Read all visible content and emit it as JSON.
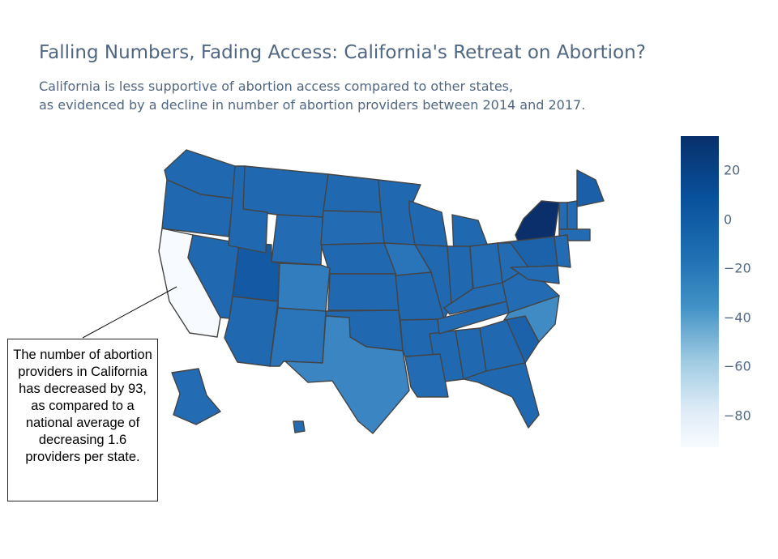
{
  "header": {
    "title": "Falling Numbers, Fading Access: California's Retreat on Abortion?",
    "subtitle_line1": "California is less supportive of abortion access compared to other states,",
    "subtitle_line2": "as evidenced by a decline in number of abortion providers between 2014 and 2017."
  },
  "annotation": {
    "text": "The number of abortion providers in California has decreased by 93, as compared to a national average of decreasing 1.6 providers per state."
  },
  "colorbar": {
    "ticks": [
      "20",
      "0",
      "−20",
      "−40",
      "−60",
      "−80"
    ],
    "tick_values": [
      20,
      0,
      -20,
      -40,
      -60,
      -80
    ],
    "range": [
      -93,
      34
    ],
    "colors": [
      "#f7fbff",
      "#deebf7",
      "#9ecae1",
      "#4292c6",
      "#2171b5",
      "#08519c",
      "#08306b"
    ]
  },
  "chart_data": {
    "type": "choropleth",
    "scope": "usa",
    "states": [
      {
        "code": "CA",
        "value": -93,
        "color": "#f7fbff"
      },
      {
        "code": "NY",
        "value": 34,
        "color": "#0b2f6b"
      },
      {
        "code": "UT",
        "value": 6,
        "color": "#1459a3"
      },
      {
        "code": "ME",
        "value": 5,
        "color": "#1a5fa8"
      },
      {
        "code": "PA",
        "value": 4,
        "color": "#1c62aa"
      },
      {
        "code": "SC",
        "value": 4,
        "color": "#1c62aa"
      },
      {
        "code": "MT",
        "value": 0,
        "color": "#2068b0"
      },
      {
        "code": "WA",
        "value": 0,
        "color": "#2068b0"
      },
      {
        "code": "OR",
        "value": 0,
        "color": "#2068b0"
      },
      {
        "code": "ND",
        "value": 0,
        "color": "#2068b0"
      },
      {
        "code": "MN",
        "value": 0,
        "color": "#2068b0"
      },
      {
        "code": "WI",
        "value": 0,
        "color": "#2068b0"
      },
      {
        "code": "MI",
        "value": 0,
        "color": "#2068b0"
      },
      {
        "code": "NE",
        "value": 0,
        "color": "#2068b0"
      },
      {
        "code": "KS",
        "value": 0,
        "color": "#2068b0"
      },
      {
        "code": "MO",
        "value": 0,
        "color": "#2068b0"
      },
      {
        "code": "IL",
        "value": 0,
        "color": "#2068b0"
      },
      {
        "code": "IN",
        "value": 0,
        "color": "#2068b0"
      },
      {
        "code": "OK",
        "value": 0,
        "color": "#2068b0"
      },
      {
        "code": "AR",
        "value": 0,
        "color": "#2068b0"
      },
      {
        "code": "MS",
        "value": 0,
        "color": "#2068b0"
      },
      {
        "code": "AL",
        "value": 0,
        "color": "#2068b0"
      },
      {
        "code": "GA",
        "value": 0,
        "color": "#2068b0"
      },
      {
        "code": "FL",
        "value": 0,
        "color": "#2068b0"
      },
      {
        "code": "AZ",
        "value": 0,
        "color": "#2068b0"
      },
      {
        "code": "NV",
        "value": 0,
        "color": "#2068b0"
      },
      {
        "code": "ID",
        "value": 0,
        "color": "#2068b0"
      },
      {
        "code": "WY",
        "value": -2,
        "color": "#236bb2"
      },
      {
        "code": "SD",
        "value": -2,
        "color": "#236bb2"
      },
      {
        "code": "LA",
        "value": -2,
        "color": "#236bb2"
      },
      {
        "code": "TN",
        "value": -2,
        "color": "#236bb2"
      },
      {
        "code": "KY",
        "value": -2,
        "color": "#236bb2"
      },
      {
        "code": "OH",
        "value": -2,
        "color": "#236bb2"
      },
      {
        "code": "WV",
        "value": -2,
        "color": "#236bb2"
      },
      {
        "code": "VA",
        "value": -2,
        "color": "#236bb2"
      },
      {
        "code": "AK",
        "value": -2,
        "color": "#236bb2"
      },
      {
        "code": "HI",
        "value": -2,
        "color": "#236bb2"
      },
      {
        "code": "VT",
        "value": -2,
        "color": "#236bb2"
      },
      {
        "code": "NH",
        "value": -2,
        "color": "#236bb2"
      },
      {
        "code": "MA",
        "value": -2,
        "color": "#236bb2"
      },
      {
        "code": "NJ",
        "value": -2,
        "color": "#236bb2"
      },
      {
        "code": "MD",
        "value": -2,
        "color": "#236bb2"
      },
      {
        "code": "IA",
        "value": -6,
        "color": "#2a74b9"
      },
      {
        "code": "NM",
        "value": -6,
        "color": "#2a74b9"
      },
      {
        "code": "CO",
        "value": -10,
        "color": "#327dbe"
      },
      {
        "code": "TX",
        "value": -14,
        "color": "#3a85c2"
      },
      {
        "code": "NC",
        "value": -17,
        "color": "#418bc5"
      }
    ]
  }
}
